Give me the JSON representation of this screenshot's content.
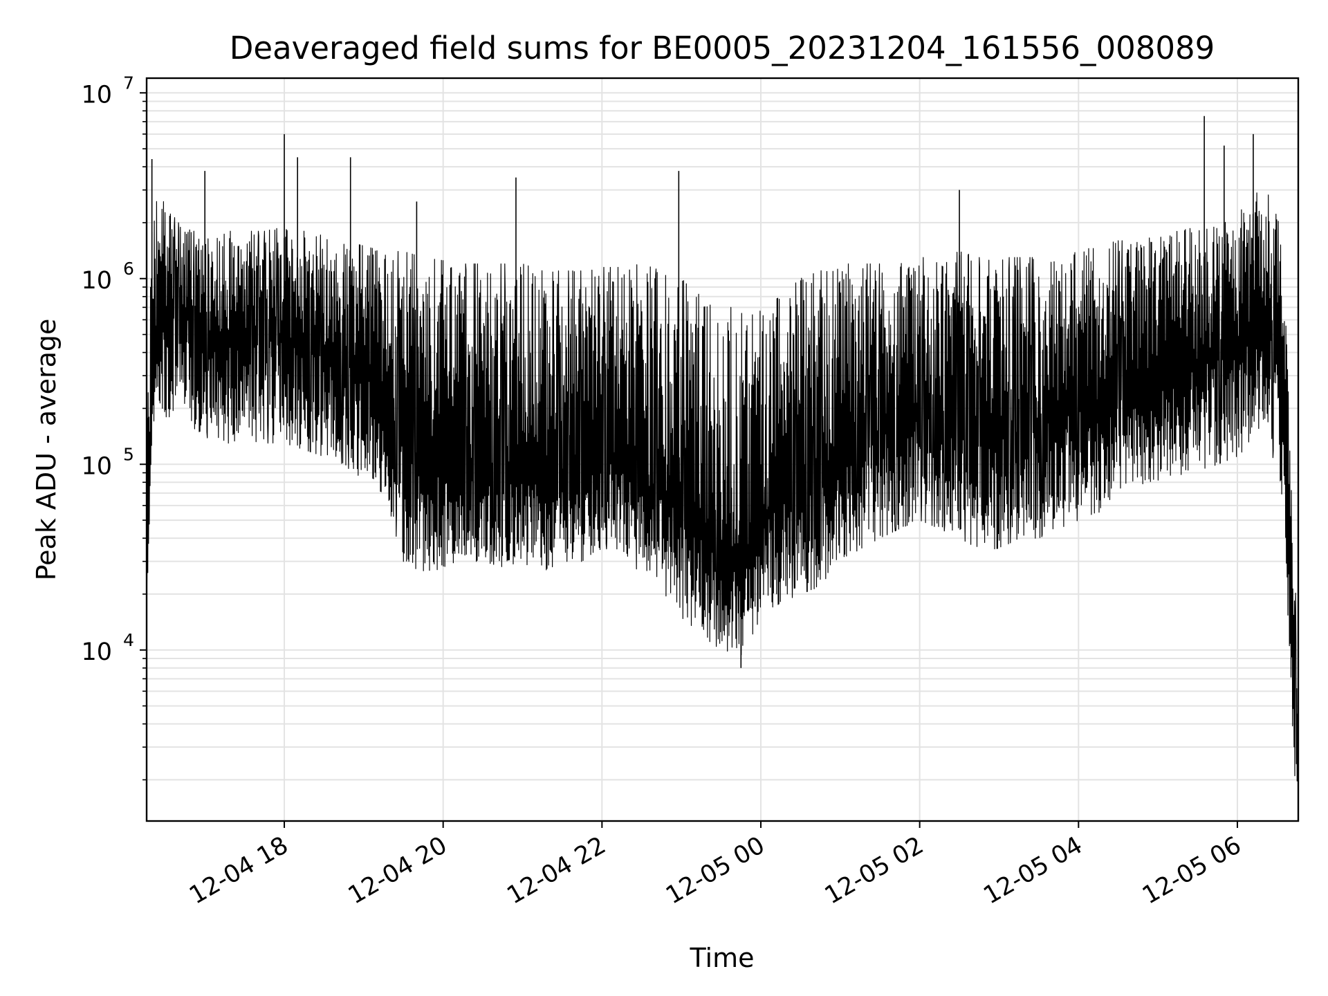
{
  "chart_data": {
    "type": "line",
    "title": "Deaveraged field sums for BE0005_20231204_161556_008089",
    "xlabel": "Time",
    "ylabel": "Peak ADU - average",
    "yscale": "log",
    "ylim": [
      1200,
      12000000
    ],
    "xlim": [
      "2023-12-04 16:16",
      "2023-12-05 06:46"
    ],
    "grid": true,
    "line_color": "#000000",
    "x_ticks": [
      {
        "value": "2023-12-04 18:00",
        "label": "12-04 18"
      },
      {
        "value": "2023-12-04 20:00",
        "label": "12-04 20"
      },
      {
        "value": "2023-12-04 22:00",
        "label": "12-04 22"
      },
      {
        "value": "2023-12-05 00:00",
        "label": "12-05 00"
      },
      {
        "value": "2023-12-05 02:00",
        "label": "12-05 02"
      },
      {
        "value": "2023-12-05 04:00",
        "label": "12-05 04"
      },
      {
        "value": "2023-12-05 06:00",
        "label": "12-05 06"
      }
    ],
    "y_ticks": [
      {
        "value": 10000,
        "base": "10",
        "exp": "4"
      },
      {
        "value": 100000,
        "base": "10",
        "exp": "5"
      },
      {
        "value": 1000000,
        "base": "10",
        "exp": "6"
      },
      {
        "value": 10000000,
        "base": "10",
        "exp": "7"
      }
    ],
    "series": [
      {
        "x": [
          "2023-12-04 16:16",
          "2023-12-04 16:20",
          "2023-12-04 16:24",
          "2023-12-04 16:30",
          "2023-12-04 16:40",
          "2023-12-04 16:50",
          "2023-12-04 17:00",
          "2023-12-04 17:15",
          "2023-12-04 17:30",
          "2023-12-04 17:45",
          "2023-12-04 18:00",
          "2023-12-04 18:15",
          "2023-12-04 18:30",
          "2023-12-04 18:45",
          "2023-12-04 19:00",
          "2023-12-04 19:15",
          "2023-12-04 19:30",
          "2023-12-04 19:45",
          "2023-12-04 20:00",
          "2023-12-04 20:15",
          "2023-12-04 20:30",
          "2023-12-04 20:45",
          "2023-12-04 21:00",
          "2023-12-04 21:15",
          "2023-12-04 21:30",
          "2023-12-04 21:45",
          "2023-12-04 22:00",
          "2023-12-04 22:15",
          "2023-12-04 22:30",
          "2023-12-04 22:45",
          "2023-12-04 23:00",
          "2023-12-04 23:15",
          "2023-12-04 23:30",
          "2023-12-04 23:45",
          "2023-12-05 00:00",
          "2023-12-05 00:15",
          "2023-12-05 00:30",
          "2023-12-05 00:45",
          "2023-12-05 01:00",
          "2023-12-05 01:15",
          "2023-12-05 01:30",
          "2023-12-05 01:45",
          "2023-12-05 02:00",
          "2023-12-05 02:15",
          "2023-12-05 02:30",
          "2023-12-05 02:45",
          "2023-12-05 03:00",
          "2023-12-05 03:15",
          "2023-12-05 03:30",
          "2023-12-05 03:45",
          "2023-12-05 04:00",
          "2023-12-05 04:15",
          "2023-12-05 04:30",
          "2023-12-05 04:45",
          "2023-12-05 05:00",
          "2023-12-05 05:15",
          "2023-12-05 05:30",
          "2023-12-05 05:45",
          "2023-12-05 06:00",
          "2023-12-05 06:10",
          "2023-12-05 06:20",
          "2023-12-05 06:30",
          "2023-12-05 06:36",
          "2023-12-05 06:40",
          "2023-12-05 06:44",
          "2023-12-05 06:46"
        ],
        "y": [
          30000,
          300000,
          500000,
          700000,
          700000,
          600000,
          500000,
          450000,
          450000,
          500000,
          450000,
          450000,
          400000,
          380000,
          300000,
          250000,
          120000,
          90000,
          90000,
          85000,
          80000,
          75000,
          100000,
          80000,
          90000,
          95000,
          110000,
          110000,
          80000,
          70000,
          55000,
          45000,
          30000,
          25000,
          55000,
          60000,
          70000,
          80000,
          100000,
          120000,
          150000,
          180000,
          200000,
          180000,
          160000,
          150000,
          140000,
          150000,
          160000,
          180000,
          200000,
          220000,
          250000,
          280000,
          300000,
          320000,
          350000,
          380000,
          450000,
          500000,
          500000,
          450000,
          200000,
          20000,
          4000,
          2000
        ],
        "envelope_upper": [
          300000,
          2000000,
          3000000,
          2500000,
          2000000,
          1800000,
          1800000,
          1800000,
          1800000,
          1800000,
          1900000,
          1800000,
          1700000,
          1600000,
          1500000,
          1400000,
          1400000,
          1300000,
          1250000,
          1200000,
          1200000,
          1200000,
          1200000,
          1100000,
          1100000,
          1100000,
          1150000,
          1150000,
          1200000,
          1100000,
          1000000,
          800000,
          700000,
          700000,
          700000,
          800000,
          1000000,
          1100000,
          1200000,
          1200000,
          1200000,
          1200000,
          1300000,
          1300000,
          1400000,
          1300000,
          1300000,
          1300000,
          1300000,
          1300000,
          1400000,
          1500000,
          1600000,
          1600000,
          1700000,
          1800000,
          1900000,
          2000000,
          2300000,
          2800000,
          3000000,
          2500000,
          1200000,
          100000,
          20000,
          5000
        ],
        "envelope_lower": [
          15000,
          100000,
          150000,
          180000,
          180000,
          160000,
          140000,
          130000,
          130000,
          130000,
          130000,
          120000,
          110000,
          100000,
          80000,
          70000,
          30000,
          25000,
          28000,
          30000,
          30000,
          28000,
          30000,
          25000,
          30000,
          30000,
          35000,
          35000,
          25000,
          20000,
          15000,
          12000,
          10000,
          9000,
          15000,
          18000,
          20000,
          22000,
          30000,
          35000,
          40000,
          45000,
          50000,
          45000,
          40000,
          35000,
          35000,
          40000,
          40000,
          45000,
          50000,
          55000,
          60000,
          70000,
          80000,
          85000,
          90000,
          100000,
          110000,
          130000,
          130000,
          100000,
          50000,
          5000,
          1800,
          1800
        ],
        "peaks": [
          {
            "x": "2023-12-04 18:00",
            "y": 6000000
          },
          {
            "x": "2023-12-04 18:10",
            "y": 4500000
          },
          {
            "x": "2023-12-04 18:50",
            "y": 4500000
          },
          {
            "x": "2023-12-04 20:55",
            "y": 3500000
          },
          {
            "x": "2023-12-04 22:58",
            "y": 3800000
          },
          {
            "x": "2023-12-05 02:30",
            "y": 3000000
          },
          {
            "x": "2023-12-05 05:35",
            "y": 7500000
          },
          {
            "x": "2023-12-05 06:12",
            "y": 6000000
          },
          {
            "x": "2023-12-04 23:45",
            "y": 8000
          },
          {
            "x": "2023-12-04 16:20",
            "y": 4400000
          },
          {
            "x": "2023-12-04 17:00",
            "y": 3800000
          },
          {
            "x": "2023-12-04 19:40",
            "y": 2600000
          },
          {
            "x": "2023-12-05 05:50",
            "y": 5200000
          }
        ]
      }
    ]
  }
}
